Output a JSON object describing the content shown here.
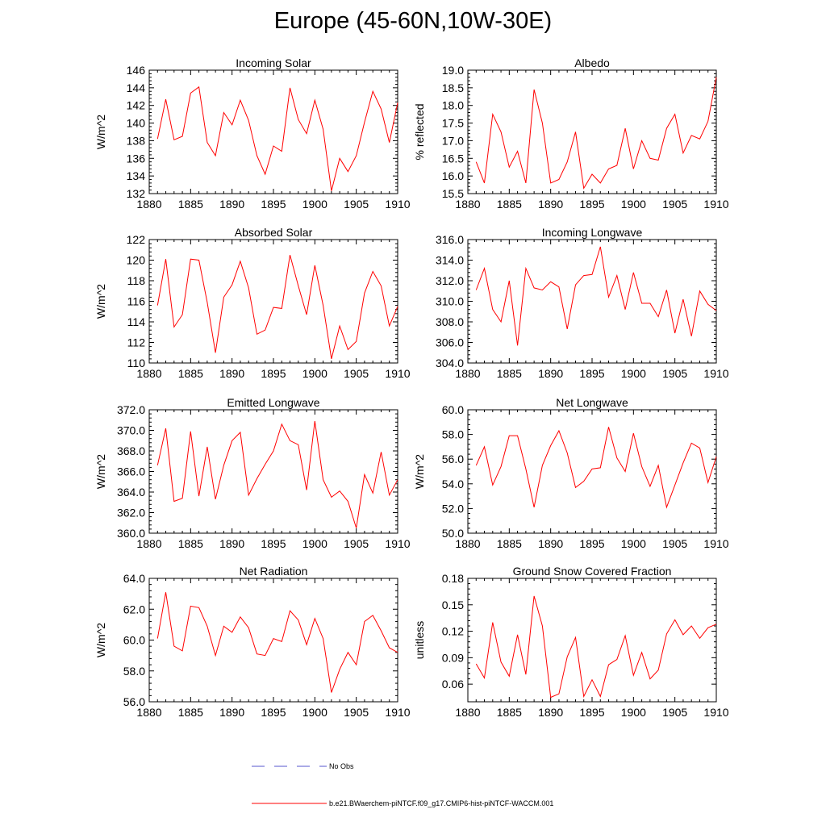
{
  "page": {
    "title": "Europe (45-60N,10W-30E)"
  },
  "legend": {
    "obs_label": "No Obs",
    "obs_color": "#5555cc",
    "model_label": "b.e21.BWaerchem-piNTCF.f09_g17.CMIP6-hist-piNTCF-WACCM.001",
    "model_color": "#ff0000"
  },
  "chart_data": [
    {
      "type": "line",
      "title": "Incoming Solar",
      "ylabel": "W/m^2",
      "xlim": [
        1880,
        1910
      ],
      "ylim": [
        132,
        146
      ],
      "xticks": [
        "1880",
        "1885",
        "1890",
        "1895",
        "1900",
        "1905",
        "1910"
      ],
      "yticks": [
        "132",
        "134",
        "136",
        "138",
        "140",
        "142",
        "144",
        "146"
      ],
      "x": [
        1881,
        1882,
        1883,
        1884,
        1885,
        1886,
        1887,
        1888,
        1889,
        1890,
        1891,
        1892,
        1893,
        1894,
        1895,
        1896,
        1897,
        1898,
        1899,
        1900,
        1901,
        1902,
        1903,
        1904,
        1905,
        1906,
        1907,
        1908,
        1909,
        1910
      ],
      "series": [
        {
          "color": "#ff0000",
          "values": [
            138.2,
            142.7,
            138.1,
            138.5,
            143.4,
            144.1,
            137.8,
            136.3,
            141.2,
            139.8,
            142.6,
            140.3,
            136.3,
            134.2,
            137.4,
            136.8,
            144.0,
            140.4,
            138.8,
            142.6,
            139.3,
            132.3,
            136.0,
            134.5,
            136.3,
            140.1,
            143.6,
            141.6,
            137.8,
            142.3
          ]
        }
      ]
    },
    {
      "type": "line",
      "title": "Albedo",
      "ylabel": "% reflected",
      "xlim": [
        1880,
        1910
      ],
      "ylim": [
        15.5,
        19.0
      ],
      "xticks": [
        "1880",
        "1885",
        "1890",
        "1895",
        "1900",
        "1905",
        "1910"
      ],
      "yticks": [
        "15.5",
        "16.0",
        "16.5",
        "17.0",
        "17.5",
        "18.0",
        "18.5",
        "19.0"
      ],
      "x": [
        1881,
        1882,
        1883,
        1884,
        1885,
        1886,
        1887,
        1888,
        1889,
        1890,
        1891,
        1892,
        1893,
        1894,
        1895,
        1896,
        1897,
        1898,
        1899,
        1900,
        1901,
        1902,
        1903,
        1904,
        1905,
        1906,
        1907,
        1908,
        1909,
        1910
      ],
      "series": [
        {
          "color": "#ff0000",
          "values": [
            16.4,
            15.8,
            17.75,
            17.25,
            16.25,
            16.7,
            15.8,
            18.45,
            17.5,
            15.8,
            15.9,
            16.4,
            17.25,
            15.65,
            16.05,
            15.8,
            16.2,
            16.3,
            17.35,
            16.2,
            17.0,
            16.5,
            16.45,
            17.35,
            17.75,
            16.65,
            17.15,
            17.05,
            17.55,
            18.8
          ]
        }
      ]
    },
    {
      "type": "line",
      "title": "Absorbed Solar",
      "ylabel": "W/m^2",
      "xlim": [
        1880,
        1910
      ],
      "ylim": [
        110,
        122
      ],
      "xticks": [
        "1880",
        "1885",
        "1890",
        "1895",
        "1900",
        "1905",
        "1910"
      ],
      "yticks": [
        "110",
        "112",
        "114",
        "116",
        "118",
        "120",
        "122"
      ],
      "x": [
        1881,
        1882,
        1883,
        1884,
        1885,
        1886,
        1887,
        1888,
        1889,
        1890,
        1891,
        1892,
        1893,
        1894,
        1895,
        1896,
        1897,
        1898,
        1899,
        1900,
        1901,
        1902,
        1903,
        1904,
        1905,
        1906,
        1907,
        1908,
        1909,
        1910
      ],
      "series": [
        {
          "color": "#ff0000",
          "values": [
            115.6,
            120.1,
            113.5,
            114.7,
            120.1,
            120.0,
            115.9,
            111.0,
            116.4,
            117.6,
            119.9,
            117.3,
            112.8,
            113.2,
            115.4,
            115.3,
            120.5,
            117.5,
            114.7,
            119.5,
            115.6,
            110.4,
            113.6,
            111.3,
            112.1,
            116.8,
            118.9,
            117.5,
            113.6,
            115.5
          ]
        }
      ]
    },
    {
      "type": "line",
      "title": "Incoming Longwave",
      "ylabel": "",
      "xlim": [
        1880,
        1910
      ],
      "ylim": [
        304.0,
        316.0
      ],
      "xticks": [
        "1880",
        "1885",
        "1890",
        "1895",
        "1900",
        "1905",
        "1910"
      ],
      "yticks": [
        "304.0",
        "306.0",
        "308.0",
        "310.0",
        "312.0",
        "314.0",
        "316.0"
      ],
      "x": [
        1881,
        1882,
        1883,
        1884,
        1885,
        1886,
        1887,
        1888,
        1889,
        1890,
        1891,
        1892,
        1893,
        1894,
        1895,
        1896,
        1897,
        1898,
        1899,
        1900,
        1901,
        1902,
        1903,
        1904,
        1905,
        1906,
        1907,
        1908,
        1909,
        1910
      ],
      "series": [
        {
          "color": "#ff0000",
          "values": [
            311.1,
            313.2,
            309.2,
            308.0,
            312.0,
            305.7,
            313.2,
            311.3,
            311.1,
            311.9,
            311.4,
            307.3,
            311.6,
            312.5,
            312.6,
            315.3,
            310.4,
            312.5,
            309.2,
            312.8,
            309.8,
            309.8,
            308.5,
            311.1,
            306.9,
            310.2,
            306.6,
            311.0,
            309.7,
            309.1
          ]
        }
      ]
    },
    {
      "type": "line",
      "title": "Emitted Longwave",
      "ylabel": "W/m^2",
      "xlim": [
        1880,
        1910
      ],
      "ylim": [
        360.0,
        372.0
      ],
      "xticks": [
        "1880",
        "1885",
        "1890",
        "1895",
        "1900",
        "1905",
        "1910"
      ],
      "yticks": [
        "360.0",
        "362.0",
        "364.0",
        "366.0",
        "368.0",
        "370.0",
        "372.0"
      ],
      "x": [
        1881,
        1882,
        1883,
        1884,
        1885,
        1886,
        1887,
        1888,
        1889,
        1890,
        1891,
        1892,
        1893,
        1894,
        1895,
        1896,
        1897,
        1898,
        1899,
        1900,
        1901,
        1902,
        1903,
        1904,
        1905,
        1906,
        1907,
        1908,
        1909,
        1910
      ],
      "series": [
        {
          "color": "#ff0000",
          "values": [
            366.6,
            370.2,
            363.1,
            363.4,
            369.9,
            363.6,
            368.4,
            363.3,
            366.6,
            369.0,
            369.8,
            363.7,
            365.3,
            366.7,
            368.0,
            370.6,
            369.0,
            368.6,
            364.2,
            370.9,
            365.2,
            363.5,
            364.1,
            363.1,
            360.5,
            365.7,
            363.9,
            367.9,
            363.7,
            365.2
          ]
        }
      ]
    },
    {
      "type": "line",
      "title": "Net Longwave",
      "ylabel": "W/m^2",
      "xlim": [
        1880,
        1910
      ],
      "ylim": [
        50.0,
        60.0
      ],
      "xticks": [
        "1880",
        "1885",
        "1890",
        "1895",
        "1900",
        "1905",
        "1910"
      ],
      "yticks": [
        "50.0",
        "52.0",
        "54.0",
        "56.0",
        "58.0",
        "60.0"
      ],
      "x": [
        1881,
        1882,
        1883,
        1884,
        1885,
        1886,
        1887,
        1888,
        1889,
        1890,
        1891,
        1892,
        1893,
        1894,
        1895,
        1896,
        1897,
        1898,
        1899,
        1900,
        1901,
        1902,
        1903,
        1904,
        1905,
        1906,
        1907,
        1908,
        1909,
        1910
      ],
      "series": [
        {
          "color": "#ff0000",
          "values": [
            55.5,
            57.0,
            53.9,
            55.4,
            57.9,
            57.9,
            55.2,
            52.1,
            55.5,
            57.1,
            58.3,
            56.5,
            53.7,
            54.2,
            55.2,
            55.3,
            58.6,
            56.1,
            55.0,
            58.1,
            55.4,
            53.8,
            55.5,
            52.1,
            53.9,
            55.7,
            57.3,
            56.9,
            54.1,
            56.2
          ]
        }
      ]
    },
    {
      "type": "line",
      "title": "Net Radiation",
      "ylabel": "W/m^2",
      "xlim": [
        1880,
        1910
      ],
      "ylim": [
        56.0,
        64.0
      ],
      "xticks": [
        "1880",
        "1885",
        "1890",
        "1895",
        "1900",
        "1905",
        "1910"
      ],
      "yticks": [
        "56.0",
        "58.0",
        "60.0",
        "62.0",
        "64.0"
      ],
      "x": [
        1881,
        1882,
        1883,
        1884,
        1885,
        1886,
        1887,
        1888,
        1889,
        1890,
        1891,
        1892,
        1893,
        1894,
        1895,
        1896,
        1897,
        1898,
        1899,
        1900,
        1901,
        1902,
        1903,
        1904,
        1905,
        1906,
        1907,
        1908,
        1909,
        1910
      ],
      "series": [
        {
          "color": "#ff0000",
          "values": [
            60.1,
            63.1,
            59.6,
            59.3,
            62.2,
            62.1,
            60.9,
            59.0,
            60.9,
            60.5,
            61.5,
            60.8,
            59.1,
            59.0,
            60.1,
            59.9,
            61.9,
            61.3,
            59.7,
            61.4,
            60.1,
            56.6,
            58.1,
            59.2,
            58.4,
            61.2,
            61.6,
            60.6,
            59.5,
            59.2
          ]
        }
      ]
    },
    {
      "type": "line",
      "title": "Ground Snow Covered Fraction",
      "ylabel": "unitless",
      "xlim": [
        1880,
        1910
      ],
      "ylim": [
        0.04,
        0.18
      ],
      "xticks": [
        "1880",
        "1885",
        "1890",
        "1895",
        "1900",
        "1905",
        "1910"
      ],
      "yticks": [
        "0.06",
        "0.09",
        "0.12",
        "0.15",
        "0.18"
      ],
      "ytick_values": [
        0.06,
        0.09,
        0.12,
        0.15,
        0.18
      ],
      "x": [
        1881,
        1882,
        1883,
        1884,
        1885,
        1886,
        1887,
        1888,
        1889,
        1890,
        1891,
        1892,
        1893,
        1894,
        1895,
        1896,
        1897,
        1898,
        1899,
        1900,
        1901,
        1902,
        1903,
        1904,
        1905,
        1906,
        1907,
        1908,
        1909,
        1910
      ],
      "series": [
        {
          "color": "#ff0000",
          "values": [
            0.083,
            0.067,
            0.13,
            0.085,
            0.069,
            0.116,
            0.071,
            0.16,
            0.126,
            0.045,
            0.049,
            0.091,
            0.113,
            0.046,
            0.065,
            0.046,
            0.082,
            0.088,
            0.115,
            0.07,
            0.096,
            0.066,
            0.076,
            0.117,
            0.133,
            0.116,
            0.126,
            0.112,
            0.124,
            0.128
          ]
        }
      ]
    }
  ]
}
